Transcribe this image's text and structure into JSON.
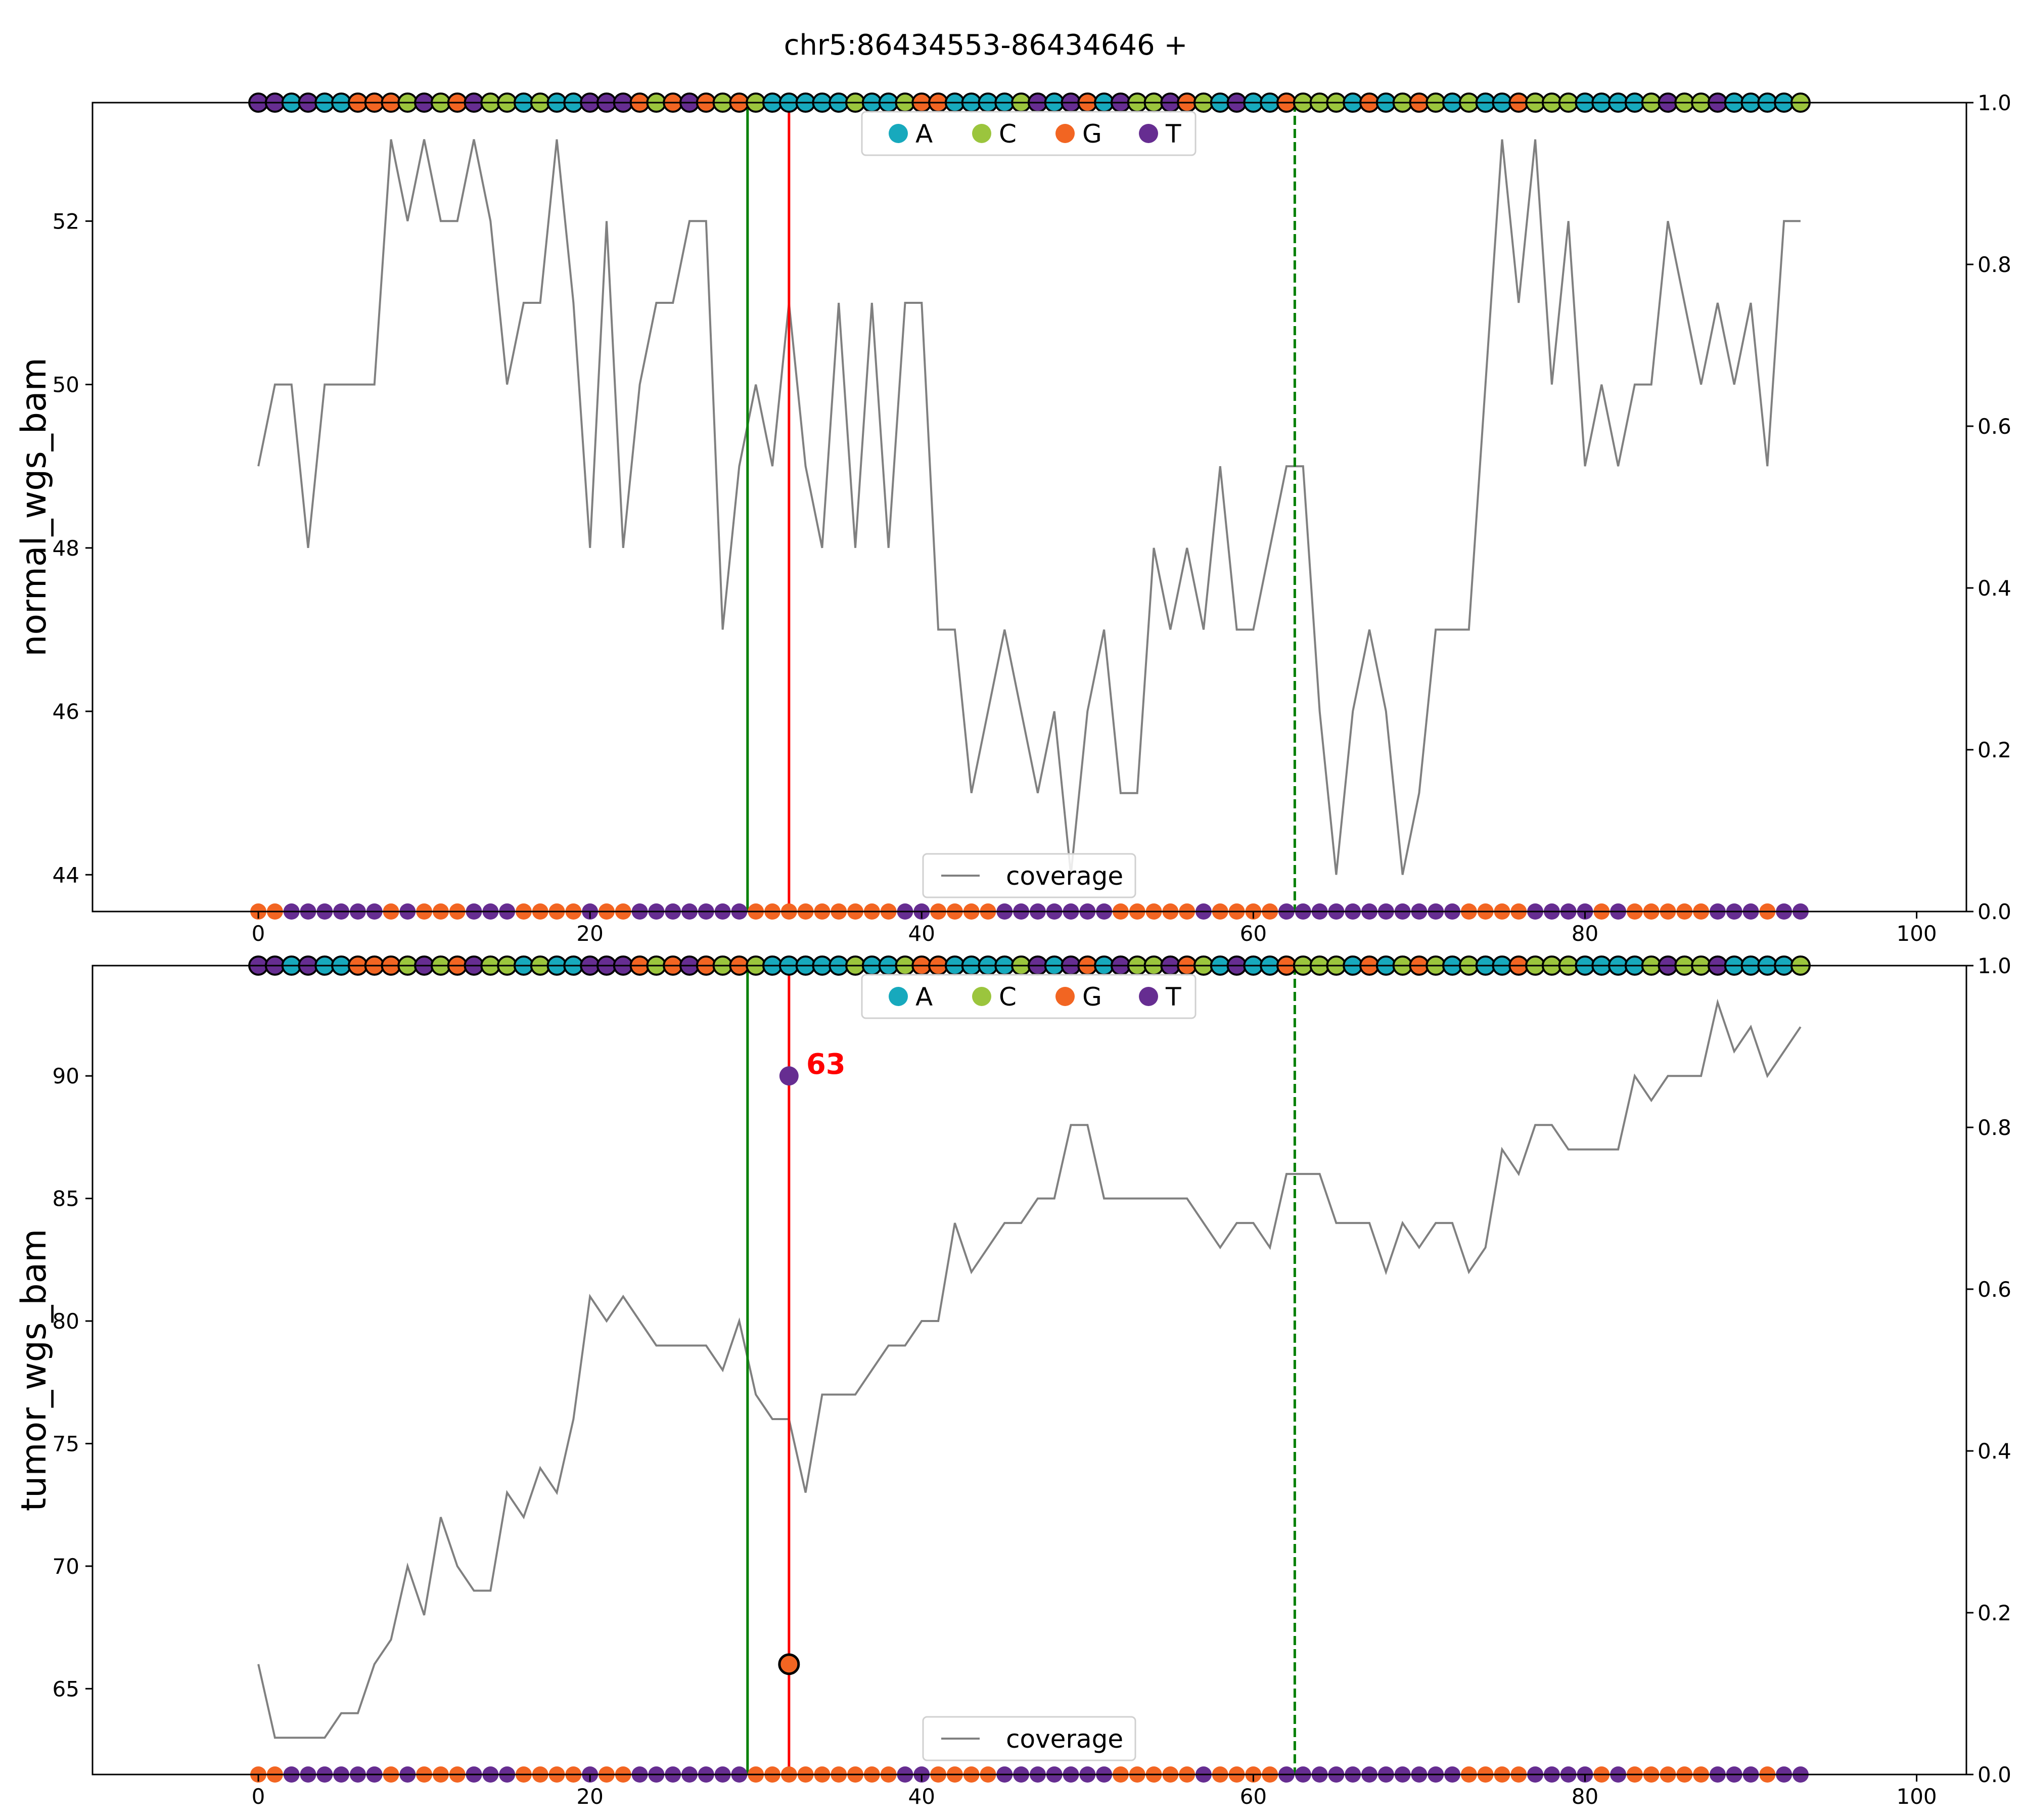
{
  "title": "chr5:86434553-86434646 +",
  "colors": {
    "A": "#17a9bd",
    "C": "#9bc53d",
    "G": "#f26522",
    "T": "#662d91",
    "coverage": "#808080",
    "green_line": "#008000",
    "red_line": "#ff0000",
    "annotation": "#ff0000"
  },
  "legend_bases": [
    "A",
    "C",
    "G",
    "T"
  ],
  "coverage_label": "coverage",
  "right_axis_ticks": [
    "0.0",
    "0.2",
    "0.4",
    "0.6",
    "0.8",
    "1.0"
  ],
  "chart_data": [
    {
      "type": "line",
      "name": "normal_wgs_bam",
      "ylabel": "normal_wgs_bam",
      "xlim": [
        -10,
        103
      ],
      "ylim": [
        43.55,
        53.45
      ],
      "xticks": [
        0,
        20,
        40,
        60,
        80,
        100
      ],
      "yticks": [
        44,
        46,
        48,
        50,
        52
      ],
      "y2lim": [
        0,
        1
      ],
      "y2ticks": [
        0,
        0.2,
        0.4,
        0.6,
        0.8,
        1.0
      ],
      "coverage": [
        49,
        50,
        50,
        48,
        50,
        50,
        50,
        50,
        53,
        52,
        53,
        52,
        52,
        53,
        52,
        50,
        51,
        51,
        53,
        51,
        48,
        52,
        48,
        50,
        51,
        51,
        52,
        52,
        47,
        49,
        50,
        49,
        51,
        49,
        48,
        51,
        48,
        51,
        48,
        51,
        51,
        47,
        47,
        45,
        46,
        47,
        46,
        45,
        46,
        44,
        46,
        47,
        45,
        45,
        48,
        47,
        48,
        47,
        49,
        47,
        47,
        48,
        49,
        49,
        46,
        44,
        46,
        47,
        46,
        44,
        45,
        47,
        47,
        47,
        50,
        53,
        51,
        53,
        50,
        52,
        49,
        50,
        49,
        50,
        50,
        52,
        51,
        50,
        51,
        50,
        51,
        49,
        52,
        52
      ],
      "vlines": {
        "green_solid": 29.5,
        "red": 32,
        "green_dashed": 62.5
      },
      "base_track_top": "TTATAAGGGCTCGTCCACAATTTGCGTGCGCAAAAACAACGGAAAACTATGATCCTGCATAAGCCCAGACGCACAAGCCCAAAACTCCTAAAACATTAT",
      "base_track_bottom": "GGTTTTTTGTGGGTTTGGGGTGGTTTTTTTGGGGGGGGGTTGGGGTTTTTTTGGGGGTGGGGTTTTTTTTTTTGGGGTTTTGTGGGGGTTTGTTTTTG",
      "point_markers": []
    },
    {
      "type": "line",
      "name": "tumor_wgs_bam",
      "ylabel": "tumor_wgs_bam",
      "xlim": [
        -10,
        103
      ],
      "ylim": [
        61.5,
        94.5
      ],
      "xticks": [
        0,
        20,
        40,
        60,
        80,
        100
      ],
      "yticks": [
        65,
        70,
        75,
        80,
        85,
        90
      ],
      "y2lim": [
        0,
        1
      ],
      "y2ticks": [
        0,
        0.2,
        0.4,
        0.6,
        0.8,
        1.0
      ],
      "coverage": [
        66,
        63,
        63,
        63,
        63,
        64,
        64,
        66,
        67,
        70,
        68,
        72,
        70,
        69,
        69,
        73,
        72,
        74,
        73,
        76,
        81,
        80,
        81,
        80,
        79,
        79,
        79,
        79,
        78,
        80,
        77,
        76,
        76,
        73,
        77,
        77,
        77,
        78,
        79,
        79,
        80,
        80,
        84,
        82,
        83,
        84,
        84,
        85,
        85,
        88,
        88,
        85,
        85,
        85,
        85,
        85,
        85,
        84,
        83,
        84,
        84,
        83,
        86,
        86,
        86,
        84,
        84,
        84,
        82,
        84,
        83,
        84,
        84,
        82,
        83,
        87,
        86,
        88,
        88,
        87,
        87,
        87,
        87,
        90,
        89,
        90,
        90,
        90,
        93,
        91,
        92,
        90,
        91,
        92
      ],
      "vlines": {
        "green_solid": 29.5,
        "red": 32,
        "green_dashed": 62.5
      },
      "base_track_top": "TTATAAGGGCTCGTCCACAATTTGCGTGCGCAAAAACAACGGAAAACTATGATCCTGCATAAGCCCAGACGCACAAGCCCAAAACTCCTAAAACATTAT",
      "base_track_bottom": "GGTTTTTTGTGGGTTTGGGGTGGTTTTTTTGGGGGGGGGTTGGGGTTTTTTTGGGGGTGGGGTTTTTTTTTTTGGGGTTTTGTGGGGGTTTGTTTTTG",
      "point_markers": [
        {
          "x": 32,
          "y": 90,
          "base": "T",
          "label": "63"
        },
        {
          "x": 32,
          "y": 66,
          "base": "G",
          "label": ""
        }
      ],
      "annotation_text": "63"
    }
  ]
}
